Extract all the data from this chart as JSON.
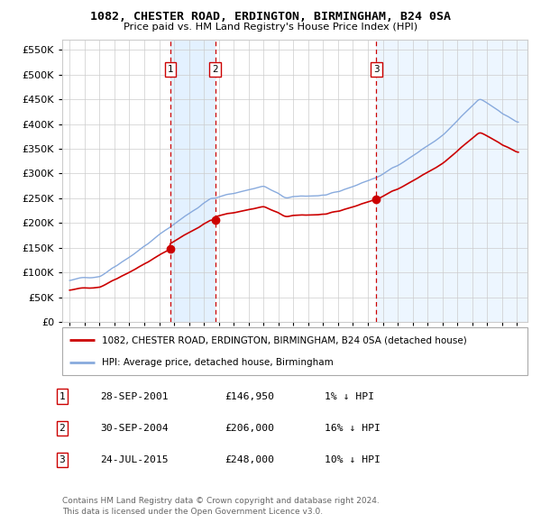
{
  "title1": "1082, CHESTER ROAD, ERDINGTON, BIRMINGHAM, B24 0SA",
  "title2": "Price paid vs. HM Land Registry's House Price Index (HPI)",
  "legend_house": "1082, CHESTER ROAD, ERDINGTON, BIRMINGHAM, B24 0SA (detached house)",
  "legend_hpi": "HPI: Average price, detached house, Birmingham",
  "transactions": [
    {
      "label": "1",
      "date": "28-SEP-2001",
      "price": 146950,
      "pct": "1%",
      "dir": "↓",
      "x_year": 2001.75
    },
    {
      "label": "2",
      "date": "30-SEP-2004",
      "price": 206000,
      "pct": "16%",
      "dir": "↓",
      "x_year": 2004.75
    },
    {
      "label": "3",
      "date": "24-JUL-2015",
      "price": 248000,
      "pct": "10%",
      "dir": "↓",
      "x_year": 2015.56
    }
  ],
  "footnote1": "Contains HM Land Registry data © Crown copyright and database right 2024.",
  "footnote2": "This data is licensed under the Open Government Licence v3.0.",
  "ylim": [
    0,
    570000
  ],
  "yticks": [
    0,
    50000,
    100000,
    150000,
    200000,
    250000,
    300000,
    350000,
    400000,
    450000,
    500000,
    550000
  ],
  "xlim_start": 1994.5,
  "xlim_end": 2025.7,
  "house_color": "#cc0000",
  "hpi_color": "#88aadd",
  "background_color": "#ffffff",
  "grid_color": "#cccccc",
  "shading_color": "#ddeeff",
  "label_box_color": "#cc0000",
  "legend_border_color": "#aaaaaa",
  "footnote_color": "#666666"
}
